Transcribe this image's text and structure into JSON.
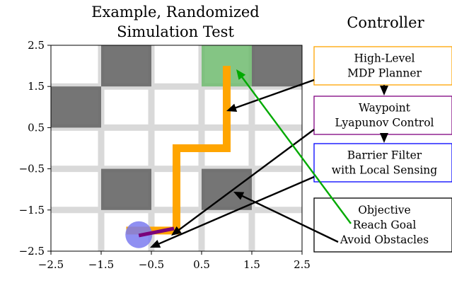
{
  "plot": {
    "title_line1": "Example, Randomized",
    "title_line2": "Simulation Test",
    "x_ticks": [
      "−2.5",
      "−1.5",
      "−0.5",
      "0.5",
      "1.5",
      "2.5"
    ],
    "y_ticks": [
      "2.5",
      "1.5",
      "0.5",
      "−0.5",
      "−1.5",
      "−2.5"
    ],
    "xlim": [
      -2.5,
      2.5
    ],
    "ylim": [
      -2.5,
      2.5
    ],
    "obstacles": [
      {
        "x": [
          -1.5,
          -0.5
        ],
        "y": [
          1.5,
          2.5
        ]
      },
      {
        "x": [
          1.5,
          2.5
        ],
        "y": [
          1.5,
          2.5
        ]
      },
      {
        "x": [
          -2.5,
          -1.5
        ],
        "y": [
          0.5,
          1.5
        ]
      },
      {
        "x": [
          -1.5,
          -0.5
        ],
        "y": [
          -1.5,
          -0.5
        ]
      },
      {
        "x": [
          0.5,
          1.5
        ],
        "y": [
          -1.5,
          -0.5
        ]
      }
    ],
    "goal": {
      "x": [
        0.5,
        1.5
      ],
      "y": [
        1.5,
        2.5
      ]
    },
    "planned_path": [
      [
        -1.0,
        -2.0
      ],
      [
        0.0,
        -2.0
      ],
      [
        0.0,
        0.0
      ],
      [
        1.0,
        0.0
      ],
      [
        1.0,
        2.0
      ]
    ],
    "robot": {
      "x": -0.75,
      "y": -2.1
    },
    "robot_heading": [
      [
        -0.75,
        -2.12
      ],
      [
        -0.05,
        -1.95
      ]
    ],
    "colors": {
      "obstacle": "#666666",
      "goal": "#6fbb6f",
      "path": "#ffa500",
      "robot": "#7b7bf0",
      "heading": "#7a007a",
      "grid": "#d9d9d9"
    }
  },
  "controller": {
    "title": "Controller",
    "boxes": [
      {
        "lines": [
          "High-Level",
          "MDP Planner"
        ],
        "border": "#ffa500"
      },
      {
        "lines": [
          "Waypoint",
          "Lyapunov Control"
        ],
        "border": "#800080"
      },
      {
        "lines": [
          "Barrier Filter",
          "with Local Sensing"
        ],
        "border": "#0000ff"
      },
      {
        "lines": [
          "Objective",
          "Reach Goal",
          "Avoid Obstacles"
        ],
        "border": "#000000"
      }
    ],
    "arrow_color": "#000000",
    "goal_arrow_color": "#00aa00"
  }
}
